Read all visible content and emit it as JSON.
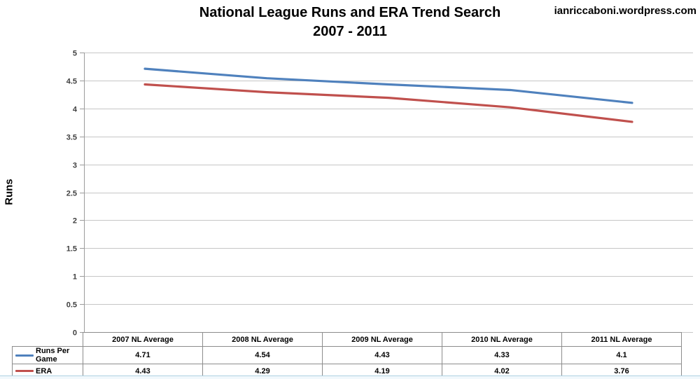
{
  "watermark": "ianriccaboni.wordpress.com",
  "chart_data": {
    "type": "line",
    "title": "National League Runs and ERA Trend Search",
    "subtitle": "2007 - 2011",
    "categories": [
      "2007 NL Average",
      "2008 NL Average",
      "2009 NL Average",
      "2010 NL Average",
      "2011 NL Average"
    ],
    "series": [
      {
        "name": "Runs Per Game",
        "color": "#4F81BD",
        "values": [
          4.71,
          4.54,
          4.43,
          4.33,
          4.1
        ]
      },
      {
        "name": "ERA",
        "color": "#C0504D",
        "values": [
          4.43,
          4.29,
          4.19,
          4.02,
          3.76
        ]
      }
    ],
    "xlabel": "",
    "ylabel": "Runs",
    "ylim": [
      0,
      5
    ],
    "ytick_step": 0.5,
    "grid": "horizontal",
    "gridline_color": "#c6c6c6",
    "axis_color": "#9b9b9b",
    "tick_label_color": "#3f3f3f",
    "legend_position": "table-left"
  }
}
